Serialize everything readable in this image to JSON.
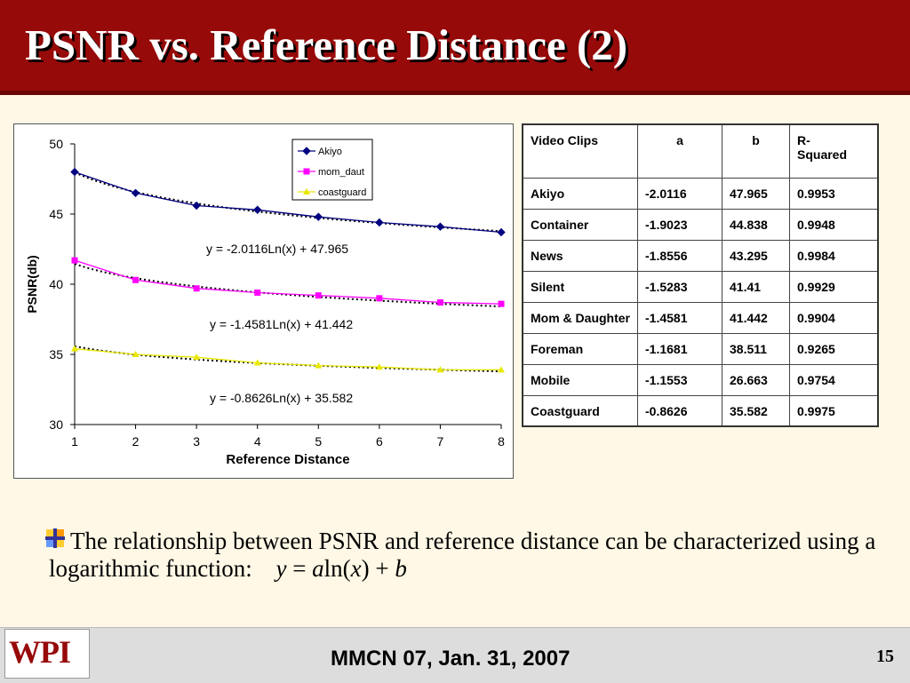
{
  "slide": {
    "title": "PSNR vs. Reference Distance (2)",
    "bullet_text": "The relationship between PSNR and reference distance can be characterized using a logarithmic function:",
    "formula": {
      "y": "y",
      "eq": " = ",
      "a": "a",
      "ln": "ln(",
      "x": "x",
      "close": ") + ",
      "b": "b"
    },
    "footer": "MMCN 07, Jan. 31, 2007",
    "page_number": "15",
    "logo_text": "WPI",
    "accent_color": "#970a0a"
  },
  "table": {
    "headers": [
      "Video Clips",
      "a",
      "b",
      "R-\nSquared"
    ],
    "rows": [
      [
        "Akiyo",
        "-2.0116",
        "47.965",
        "0.9953"
      ],
      [
        "Container",
        "-1.9023",
        "44.838",
        "0.9948"
      ],
      [
        "News",
        "-1.8556",
        "43.295",
        "0.9984"
      ],
      [
        "Silent",
        "-1.5283",
        "41.41",
        "0.9929"
      ],
      [
        "Mom & Daughter",
        "-1.4581",
        "41.442",
        "0.9904"
      ],
      [
        "Foreman",
        "-1.1681",
        "38.511",
        "0.9265"
      ],
      [
        "Mobile",
        "-1.1553",
        "26.663",
        "0.9754"
      ],
      [
        "Coastguard",
        "-0.8626",
        "35.582",
        "0.9975"
      ]
    ]
  },
  "chart_data": {
    "type": "line",
    "xlabel": "Reference Distance",
    "ylabel": "PSNR(db)",
    "x": [
      1,
      2,
      3,
      4,
      5,
      6,
      7,
      8
    ],
    "xlim": [
      1,
      8
    ],
    "ylim": [
      30,
      50
    ],
    "yticks": [
      30,
      35,
      40,
      45,
      50
    ],
    "grid": false,
    "legend_position": "top-right",
    "series": [
      {
        "name": "Akiyo",
        "color": "#000080",
        "marker": "diamond",
        "values": [
          48.0,
          46.5,
          45.6,
          45.3,
          44.8,
          44.4,
          44.1,
          43.7
        ]
      },
      {
        "name": "mom_daut",
        "color": "#ff00ff",
        "marker": "square",
        "values": [
          41.7,
          40.3,
          39.7,
          39.4,
          39.2,
          39.0,
          38.7,
          38.6
        ]
      },
      {
        "name": "coastguard",
        "color": "#e8e800",
        "marker": "triangle",
        "values": [
          35.4,
          35.0,
          34.8,
          34.4,
          34.2,
          34.1,
          33.9,
          33.9
        ]
      }
    ],
    "trendlines": [
      {
        "series": "Akiyo",
        "a": -2.0116,
        "b": 47.965
      },
      {
        "series": "mom_daut",
        "a": -1.4581,
        "b": 41.442
      },
      {
        "series": "coastguard",
        "a": -0.8626,
        "b": 35.582
      }
    ],
    "annotations": [
      "y = -2.0116Ln(x) + 47.965",
      "y = -1.4581Ln(x) + 41.442",
      "y = -0.8626Ln(x) + 35.582"
    ]
  }
}
